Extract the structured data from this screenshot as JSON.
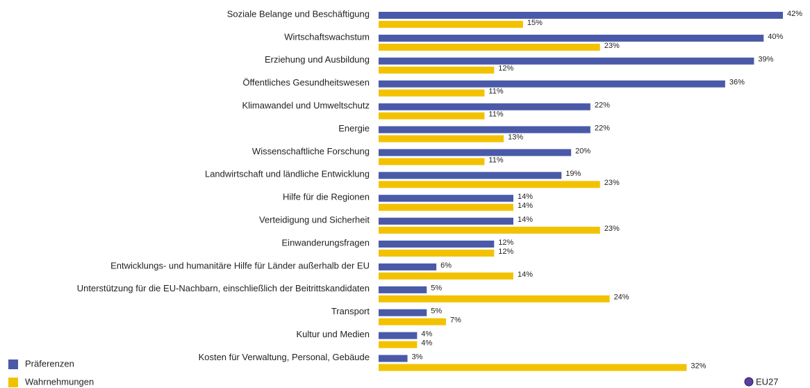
{
  "chart_data": {
    "type": "bar",
    "orientation": "horizontal",
    "categories": [
      "Soziale Belange und Beschäftigung",
      "Wirtschaftswachstum",
      "Erziehung und Ausbildung",
      "Öffentliches Gesundheitswesen",
      "Klimawandel und Umweltschutz",
      "Energie",
      "Wissenschaftliche Forschung",
      "Landwirtschaft und ländliche Entwicklung",
      "Hilfe für die Regionen",
      "Verteidigung und Sicherheit",
      "Einwanderungsfragen",
      "Entwicklungs- und humanitäre Hilfe für Länder außerhalb der EU",
      "Unterstützung für die EU-Nachbarn, einschließlich der Beitrittskandidaten",
      "Transport",
      "Kultur und Medien",
      "Kosten für Verwaltung, Personal, Gebäude"
    ],
    "series": [
      {
        "name": "Präferenzen",
        "color": "#4a5aa8",
        "values": [
          42,
          40,
          39,
          36,
          22,
          22,
          20,
          19,
          14,
          14,
          12,
          6,
          5,
          5,
          4,
          3
        ],
        "value_labels": [
          "42%",
          "40%",
          "39%",
          "36%",
          "22%",
          "22%",
          "20%",
          "19%",
          "14%",
          "14%",
          "12%",
          "6%",
          "5%",
          "5%",
          "4%",
          "3%"
        ]
      },
      {
        "name": "Wahrnehmungen",
        "color": "#f2c200",
        "values": [
          15,
          23,
          12,
          11,
          11,
          13,
          11,
          23,
          14,
          23,
          12,
          14,
          24,
          7,
          4,
          32
        ],
        "value_labels": [
          "15%",
          "23%",
          "12%",
          "11%",
          "11%",
          "13%",
          "11%",
          "23%",
          "14%",
          "23%",
          "12%",
          "14%",
          "24%",
          "7%",
          "4%",
          "32%"
        ]
      }
    ],
    "annotation": "EU27",
    "legend": "bottom-left"
  }
}
